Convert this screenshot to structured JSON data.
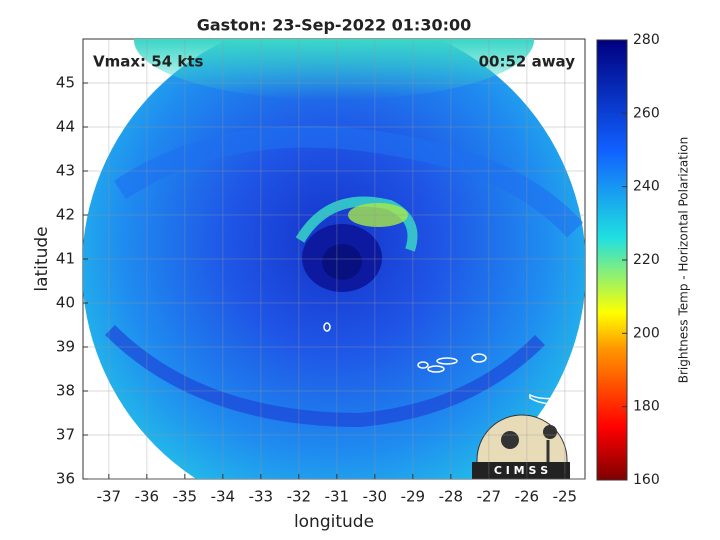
{
  "chart_data": {
    "type": "map",
    "title": "Gaston: 23-Sep-2022 01:30:00",
    "annotations": [
      "Vmax: 54 kts",
      "00:52 away"
    ],
    "xlabel": "longitude",
    "ylabel": "latitude",
    "xlim": [
      -37.68,
      -24.47
    ],
    "xticks": [
      -37,
      -36,
      -35,
      -34,
      -33,
      -32,
      -31,
      -30,
      -29,
      -28,
      -27,
      -26,
      -25
    ],
    "ylim": [
      36,
      46
    ],
    "yticks": [
      36,
      37,
      38,
      39,
      40,
      41,
      42,
      43,
      44,
      45
    ],
    "grid": true,
    "colorbar": {
      "label": "Brightness Temp - Horizontal Polarization",
      "lim": [
        160,
        280
      ],
      "ticks": [
        160,
        180,
        200,
        220,
        240,
        260,
        280
      ]
    }
  },
  "logo": "C I M S S"
}
